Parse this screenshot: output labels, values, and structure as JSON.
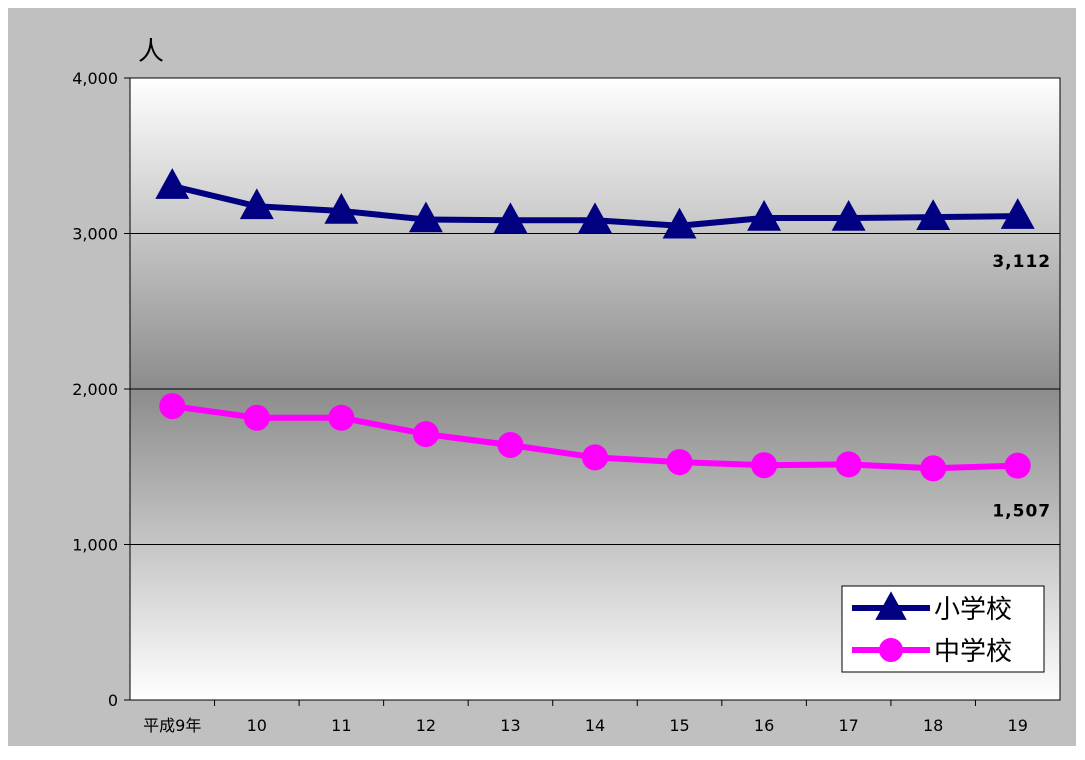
{
  "chart_data": {
    "type": "line",
    "ylabel": "人",
    "categories": [
      "平成9年",
      "10",
      "11",
      "12",
      "13",
      "14",
      "15",
      "16",
      "17",
      "18",
      "19"
    ],
    "ylim": [
      0,
      4000
    ],
    "yticks": [
      0,
      1000,
      2000,
      3000,
      4000
    ],
    "ytick_labels": [
      "0",
      "1,000",
      "2,000",
      "3,000",
      "4,000"
    ],
    "grid": true,
    "legend_position": "bottom-right",
    "series": [
      {
        "name": "小学校",
        "marker": "triangle",
        "color": "#000080",
        "values": [
          3305,
          3175,
          3145,
          3090,
          3085,
          3085,
          3050,
          3100,
          3100,
          3105,
          3112
        ],
        "end_label": "3,112"
      },
      {
        "name": "中学校",
        "marker": "circle",
        "color": "#ff00ff",
        "values": [
          1890,
          1815,
          1815,
          1710,
          1640,
          1560,
          1530,
          1510,
          1515,
          1490,
          1507
        ],
        "end_label": "1,507"
      }
    ]
  }
}
